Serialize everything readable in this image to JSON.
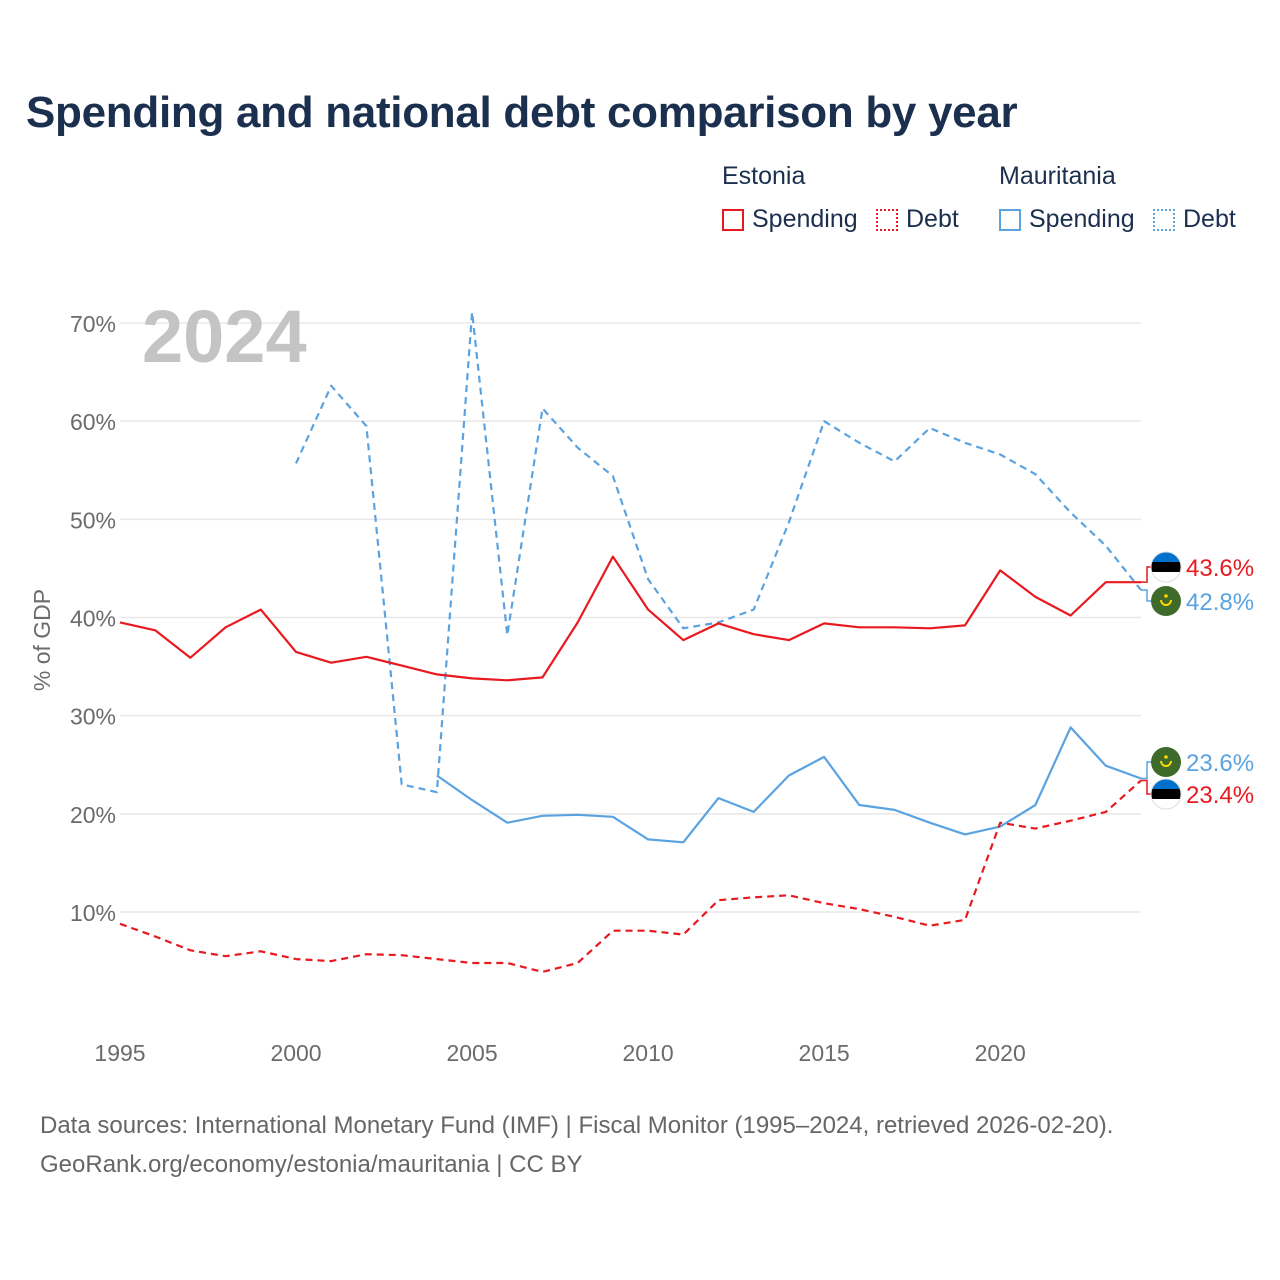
{
  "title": "Spending and national debt comparison by year",
  "legend": {
    "groups": [
      {
        "country": "Estonia",
        "items": [
          "Spending",
          "Debt"
        ]
      },
      {
        "country": "Mauritania",
        "items": [
          "Spending",
          "Debt"
        ]
      }
    ]
  },
  "colors": {
    "estonia": "#e8191f",
    "mauritania": "#5aa3e0",
    "title": "#1b2f4e",
    "grid": "#e8e8e8",
    "axis_text": "#6b6b6b",
    "year_watermark": "#c4c4c4"
  },
  "year_watermark": "2024",
  "sources": {
    "line1": "Data sources: International Monetary Fund (IMF) | Fiscal Monitor (1995–2024, retrieved 2026-02-20).",
    "line2": "GeoRank.org/economy/estonia/mauritania | CC BY"
  },
  "end_labels": {
    "estonia_spending": "43.6%",
    "mauritania_debt": "42.8%",
    "mauritania_spending": "23.6%",
    "estonia_debt": "23.4%"
  },
  "chart_data": {
    "type": "line",
    "title": "Spending and national debt comparison by year",
    "xlabel": "",
    "ylabel": "% of GDP",
    "xlim": [
      1995,
      2024
    ],
    "ylim": [
      0,
      72
    ],
    "y_ticks": [
      10,
      20,
      30,
      40,
      50,
      60,
      70
    ],
    "y_tick_labels": [
      "10%",
      "20%",
      "30%",
      "40%",
      "50%",
      "60%",
      "70%"
    ],
    "x_ticks": [
      1995,
      2000,
      2005,
      2010,
      2015,
      2020
    ],
    "x_tick_labels": [
      "1995",
      "2000",
      "2005",
      "2010",
      "2015",
      "2020"
    ],
    "grid": true,
    "legend_position": "top-right",
    "series": [
      {
        "name": "Estonia Spending",
        "country": "Estonia",
        "metric": "Spending",
        "style": "solid",
        "color": "#e8191f",
        "x": [
          1995,
          1996,
          1997,
          1998,
          1999,
          2000,
          2001,
          2002,
          2003,
          2004,
          2005,
          2006,
          2007,
          2008,
          2009,
          2010,
          2011,
          2012,
          2013,
          2014,
          2015,
          2016,
          2017,
          2018,
          2019,
          2020,
          2021,
          2022,
          2023,
          2024
        ],
        "values": [
          39.5,
          38.7,
          35.9,
          39.0,
          40.8,
          36.5,
          35.4,
          36.0,
          35.1,
          34.2,
          33.8,
          33.6,
          33.9,
          39.5,
          46.2,
          40.8,
          37.7,
          39.4,
          38.3,
          37.7,
          39.4,
          39.0,
          39.0,
          38.9,
          39.2,
          44.8,
          42.1,
          40.2,
          43.6,
          43.6
        ]
      },
      {
        "name": "Estonia Debt",
        "country": "Estonia",
        "metric": "Debt",
        "style": "dashed",
        "color": "#e8191f",
        "x": [
          1995,
          1996,
          1997,
          1998,
          1999,
          2000,
          2001,
          2002,
          2003,
          2004,
          2005,
          2006,
          2007,
          2008,
          2009,
          2010,
          2011,
          2012,
          2013,
          2014,
          2015,
          2016,
          2017,
          2018,
          2019,
          2020,
          2021,
          2022,
          2023,
          2024
        ],
        "values": [
          8.8,
          7.5,
          6.1,
          5.5,
          6.0,
          5.2,
          5.0,
          5.7,
          5.6,
          5.2,
          4.8,
          4.8,
          3.9,
          4.8,
          8.1,
          8.1,
          7.7,
          11.2,
          11.5,
          11.7,
          10.9,
          10.3,
          9.5,
          8.6,
          9.2,
          19.1,
          18.5,
          19.3,
          20.2,
          23.4
        ]
      },
      {
        "name": "Mauritania Spending",
        "country": "Mauritania",
        "metric": "Spending",
        "style": "solid",
        "color": "#5aa3e0",
        "x": [
          2004,
          2005,
          2006,
          2007,
          2008,
          2009,
          2010,
          2011,
          2012,
          2013,
          2014,
          2015,
          2016,
          2017,
          2018,
          2019,
          2020,
          2021,
          2022,
          2023,
          2024
        ],
        "values": [
          23.9,
          21.4,
          19.1,
          19.8,
          19.9,
          19.7,
          17.4,
          17.1,
          21.6,
          20.2,
          23.9,
          25.8,
          20.9,
          20.4,
          19.1,
          17.9,
          18.7,
          20.9,
          28.8,
          24.9,
          23.6
        ]
      },
      {
        "name": "Mauritania Debt",
        "country": "Mauritania",
        "metric": "Debt",
        "style": "dashed",
        "color": "#5aa3e0",
        "x": [
          2000,
          2001,
          2002,
          2003,
          2004,
          2005,
          2006,
          2007,
          2008,
          2009,
          2010,
          2011,
          2012,
          2013,
          2014,
          2015,
          2016,
          2017,
          2018,
          2019,
          2020,
          2021,
          2022,
          2023,
          2024
        ],
        "values": [
          55.7,
          63.6,
          59.5,
          23.0,
          22.2,
          71.1,
          38.2,
          61.3,
          57.3,
          54.4,
          43.9,
          38.9,
          39.5,
          40.8,
          49.7,
          60.0,
          57.8,
          55.9,
          59.3,
          57.8,
          56.6,
          54.6,
          50.7,
          47.3,
          42.8
        ]
      }
    ]
  }
}
